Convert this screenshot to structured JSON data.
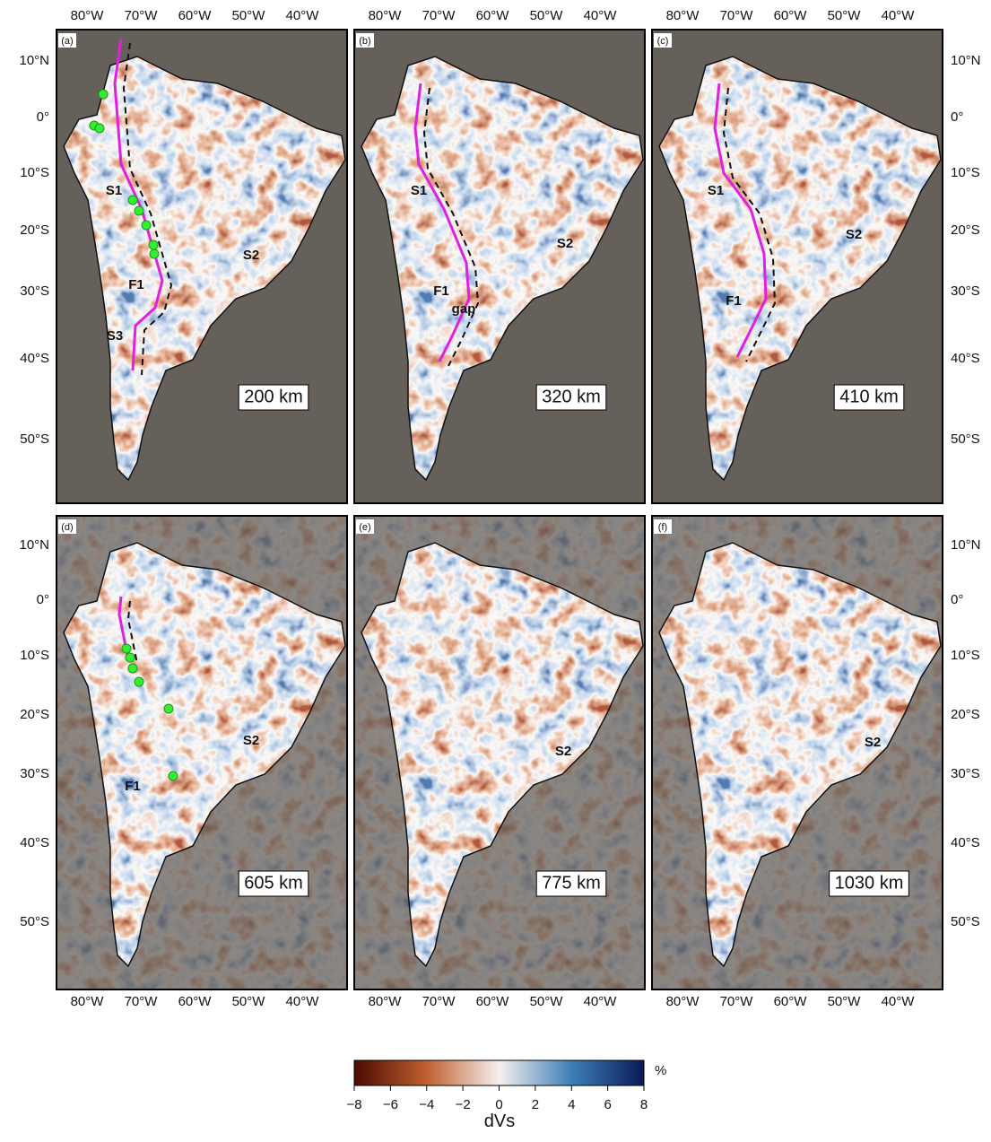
{
  "panels": [
    {
      "label": "(a)",
      "depth": "200 km",
      "annotations": [
        "S1",
        "F1",
        "S3",
        "S2"
      ]
    },
    {
      "label": "(b)",
      "depth": "320 km",
      "annotations": [
        "S1",
        "F1",
        "gap",
        "S2"
      ]
    },
    {
      "label": "(c)",
      "depth": "410 km",
      "annotations": [
        "S1",
        "F1",
        "S2"
      ]
    },
    {
      "label": "(d)",
      "depth": "605 km",
      "annotations": [
        "S2",
        "F1"
      ]
    },
    {
      "label": "(e)",
      "depth": "775 km",
      "annotations": [
        "S2"
      ]
    },
    {
      "label": "(f)",
      "depth": "1030 km",
      "annotations": [
        "S2"
      ]
    }
  ],
  "axes": {
    "lon_labels": [
      "80°W",
      "70°W",
      "60°W",
      "50°W",
      "40°W"
    ],
    "lat_labels": [
      "10°N",
      "0°",
      "10°S",
      "20°S",
      "30°S",
      "40°S",
      "50°S"
    ]
  },
  "colorbar": {
    "label": "dVs",
    "unit": "%",
    "lim": [
      -8,
      8
    ],
    "ticks": [
      {
        "value": -8,
        "label": "−8"
      },
      {
        "value": -6,
        "label": "−6"
      },
      {
        "value": -4,
        "label": "−4"
      },
      {
        "value": -2,
        "label": "−2"
      },
      0,
      2,
      4,
      6,
      8
    ]
  }
}
